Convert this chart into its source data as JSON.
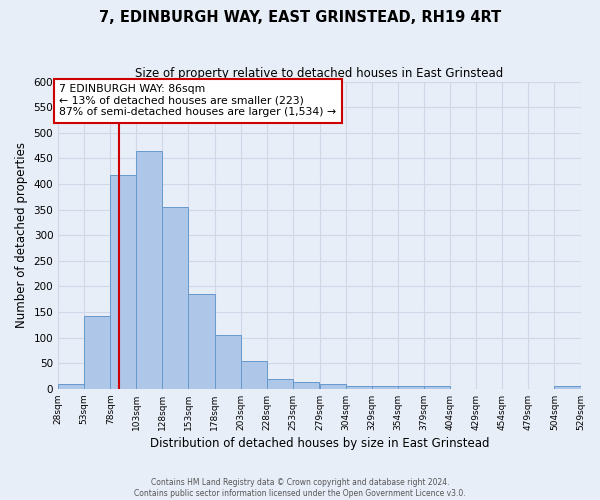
{
  "title": "7, EDINBURGH WAY, EAST GRINSTEAD, RH19 4RT",
  "subtitle": "Size of property relative to detached houses in East Grinstead",
  "xlabel": "Distribution of detached houses by size in East Grinstead",
  "ylabel": "Number of detached properties",
  "bin_edges": [
    28,
    53,
    78,
    103,
    128,
    153,
    178,
    203,
    228,
    253,
    279,
    304,
    329,
    354,
    379,
    404,
    429,
    454,
    479,
    504,
    529
  ],
  "bin_heights": [
    10,
    143,
    418,
    465,
    355,
    186,
    105,
    54,
    19,
    14,
    10,
    5,
    5,
    5,
    5,
    0,
    0,
    0,
    0,
    6
  ],
  "bar_color": "#aec6e8",
  "bar_edge_color": "#6699cc",
  "property_size": 86,
  "vline_color": "#cc0000",
  "annotation_line1": "7 EDINBURGH WAY: 86sqm",
  "annotation_line2": "← 13% of detached houses are smaller (223)",
  "annotation_line3": "87% of semi-detached houses are larger (1,534) →",
  "annotation_bbox_color": "#ffffff",
  "annotation_bbox_edge": "#cc0000",
  "ylim": [
    0,
    600
  ],
  "bin_width": 25,
  "tick_labels": [
    "28sqm",
    "53sqm",
    "78sqm",
    "103sqm",
    "128sqm",
    "153sqm",
    "178sqm",
    "203sqm",
    "228sqm",
    "253sqm",
    "279sqm",
    "304sqm",
    "329sqm",
    "354sqm",
    "379sqm",
    "404sqm",
    "429sqm",
    "454sqm",
    "479sqm",
    "504sqm",
    "529sqm"
  ],
  "footer_line1": "Contains HM Land Registry data © Crown copyright and database right 2024.",
  "footer_line2": "Contains public sector information licensed under the Open Government Licence v3.0.",
  "background_color": "#e8eef8",
  "grid_color": "#d0d8e8"
}
